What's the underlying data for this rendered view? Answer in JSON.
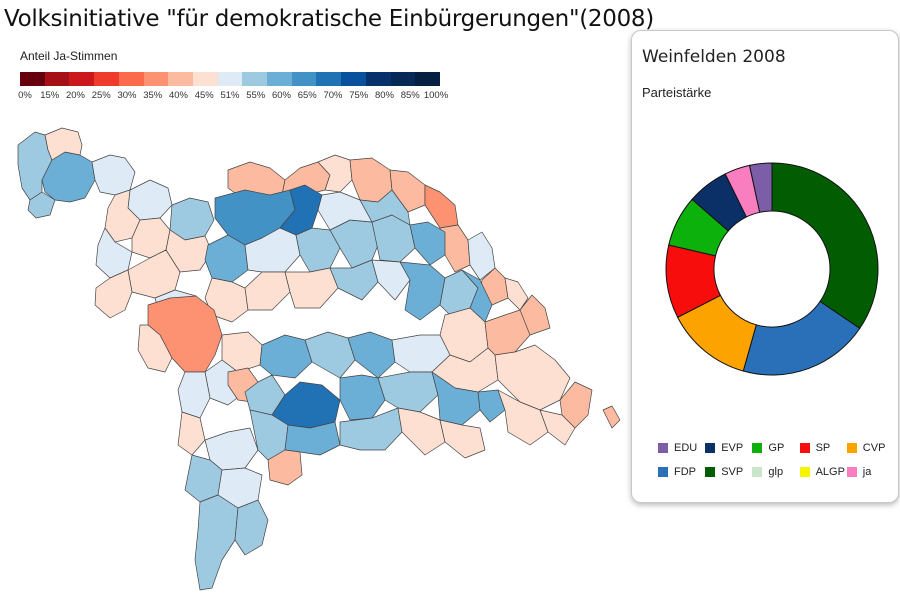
{
  "title": "Volksinitiative \"für demokratische Einbürgerungen\"(2008)",
  "legend": {
    "title": "Anteil Ja-Stimmen",
    "colors": [
      "#67000d",
      "#a50f15",
      "#cb181d",
      "#ef3b2c",
      "#fb6a4a",
      "#fc9272",
      "#fcbba1",
      "#fee0d2",
      "#deebf7",
      "#9ecae1",
      "#6baed6",
      "#4292c6",
      "#2171b5",
      "#08519c",
      "#08306b",
      "#062a55",
      "#041f40"
    ],
    "labels": [
      "0%",
      "15%",
      "20%",
      "25%",
      "30%",
      "35%",
      "40%",
      "45%",
      "51%",
      "55%",
      "60%",
      "65%",
      "70%",
      "75%",
      "80%",
      "85%",
      "100%"
    ]
  },
  "panel": {
    "title": "Weinfelden 2008",
    "subtitle": "Parteistärke"
  },
  "parties": [
    {
      "name": "EDU",
      "color": "#7b5ea7"
    },
    {
      "name": "EVP",
      "color": "#0b3068"
    },
    {
      "name": "GP",
      "color": "#0cb10c"
    },
    {
      "name": "SP",
      "color": "#f80d0d"
    },
    {
      "name": "CVP",
      "color": "#fca300"
    },
    {
      "name": "FDP",
      "color": "#2a70b8"
    },
    {
      "name": "SVP",
      "color": "#025d02"
    },
    {
      "name": "glp",
      "color": "#c9e6c9"
    },
    {
      "name": "ALGP",
      "color": "#f5f500"
    },
    {
      "name": "ja",
      "color": "#f87ec0"
    }
  ],
  "chart_data": {
    "type": "pie",
    "style": "donut",
    "order": [
      "SVP",
      "FDP",
      "CVP",
      "SP",
      "GP",
      "EVP",
      "ja",
      "EDU"
    ],
    "values": {
      "SVP": 35.5,
      "FDP": 20.5,
      "CVP": 13.5,
      "SP": 11.5,
      "GP": 8.0,
      "EVP": 6.5,
      "ja": 4.0,
      "EDU": 3.5
    }
  }
}
